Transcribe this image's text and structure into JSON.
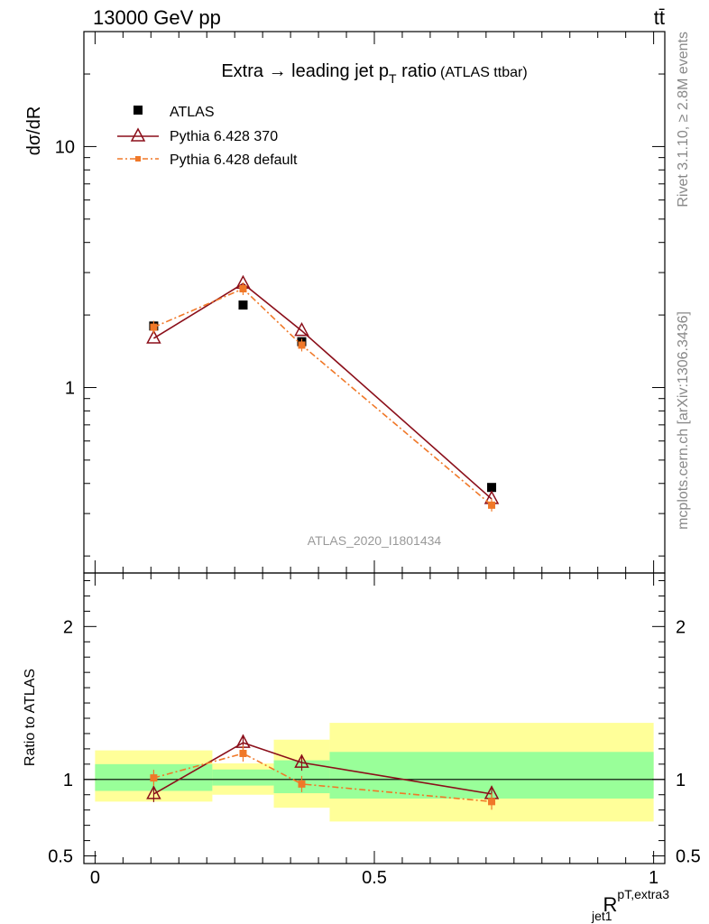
{
  "header": {
    "left": "13000 GeV pp",
    "right": "tt̄"
  },
  "side_labels": {
    "top": "Rivet 3.1.10, ≥ 2.8M events",
    "bottom": "mcplots.cern.ch [arXiv:1306.3436]"
  },
  "chart_data": [
    {
      "type": "scatter",
      "panel": "main",
      "title": "Extra → leading jet p",
      "title_sub": "T",
      "title_tail": " ratio",
      "title_note": "(ATLAS ttbar)",
      "ylabel": "dσ/dR",
      "yscale": "log",
      "ylim": [
        0.17,
        30
      ],
      "xlim": [
        -0.02,
        1.02
      ],
      "yticks": [
        {
          "value": 1,
          "label": "1"
        },
        {
          "value": 10,
          "label": "10"
        }
      ],
      "watermark": "ATLAS_2020_I1801434",
      "legend_position": "top-left",
      "series": [
        {
          "name": "ATLAS",
          "marker": "square",
          "color": "#000000",
          "x": [
            0.105,
            0.265,
            0.37,
            0.71
          ],
          "y": [
            1.8,
            2.2,
            1.55,
            0.385
          ],
          "xerr": [
            0.105,
            0.055,
            0.05,
            0.29
          ]
        },
        {
          "name": "Pythia 6.428 370",
          "marker": "triangle",
          "color": "#8b0f1a",
          "x": [
            0.105,
            0.265,
            0.37,
            0.71
          ],
          "y": [
            1.6,
            2.7,
            1.72,
            0.345
          ]
        },
        {
          "name": "Pythia 6.428 default",
          "marker": "dot",
          "color": "#f07828",
          "x": [
            0.105,
            0.265,
            0.37,
            0.71
          ],
          "y": [
            1.78,
            2.57,
            1.5,
            0.325
          ]
        }
      ]
    },
    {
      "type": "scatter",
      "panel": "ratio",
      "ylabel": "Ratio to ATLAS",
      "xlabel": "R",
      "xlabel_sup": "pT,extra3",
      "xlabel_sub": "jet1",
      "ylim": [
        0.45,
        2.35
      ],
      "xlim": [
        -0.02,
        1.02
      ],
      "yticks": [
        {
          "value": 0.5,
          "label": "0.5"
        },
        {
          "value": 1,
          "label": "1"
        },
        {
          "value": 2,
          "label": "2"
        }
      ],
      "xticks": [
        {
          "value": 0,
          "label": "0"
        },
        {
          "value": 0.5,
          "label": "0.5"
        },
        {
          "value": 1,
          "label": "1"
        }
      ],
      "bands": [
        {
          "x0": 0.0,
          "x1": 0.21,
          "inner": [
            0.925,
            1.1
          ],
          "outer": [
            0.855,
            1.19
          ]
        },
        {
          "x0": 0.21,
          "x1": 0.32,
          "inner": [
            0.96,
            1.065
          ],
          "outer": [
            0.9,
            1.105
          ]
        },
        {
          "x0": 0.32,
          "x1": 0.42,
          "inner": [
            0.91,
            1.125
          ],
          "outer": [
            0.815,
            1.26
          ]
        },
        {
          "x0": 0.42,
          "x1": 1.0,
          "inner": [
            0.875,
            1.18
          ],
          "outer": [
            0.725,
            1.37
          ]
        }
      ],
      "series": [
        {
          "name": "Pythia 6.428 370",
          "marker": "triangle",
          "color": "#8b0f1a",
          "x": [
            0.105,
            0.265,
            0.37,
            0.71
          ],
          "y": [
            0.905,
            1.24,
            1.11,
            0.905
          ]
        },
        {
          "name": "Pythia 6.428 default",
          "marker": "dot",
          "color": "#f07828",
          "x": [
            0.105,
            0.265,
            0.37,
            0.71
          ],
          "y": [
            1.01,
            1.17,
            0.97,
            0.855
          ]
        }
      ]
    }
  ]
}
